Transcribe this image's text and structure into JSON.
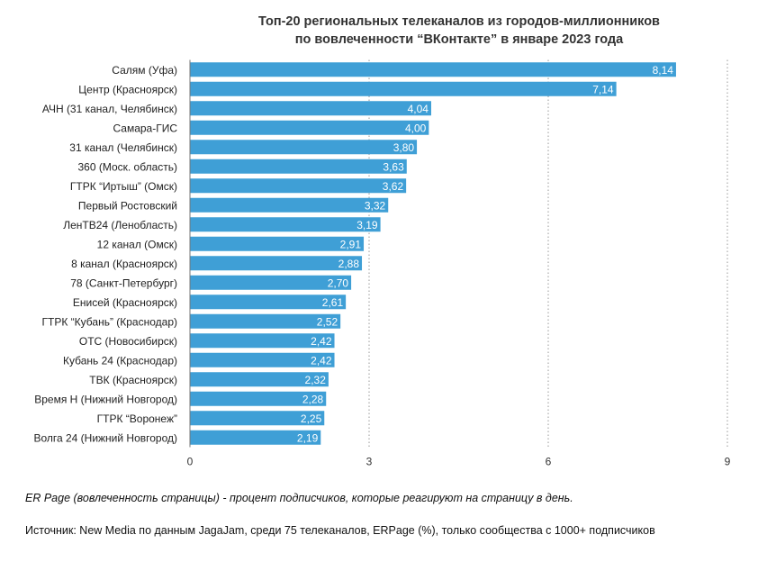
{
  "chart_data": {
    "type": "bar",
    "orientation": "horizontal",
    "title": "Топ-20 региональных телеканалов из городов-миллионников",
    "subtitle": "по вовлеченности “ВКонтакте” в январе 2023 года",
    "categories": [
      "Салям (Уфа)",
      "Центр (Красноярск)",
      "АЧН (31 канал, Челябинск)",
      "Самара-ГИС",
      "31 канал (Челябинск)",
      "360 (Моск. область)",
      "ГТРК “Иртыш” (Омск)",
      "Первый Ростовский",
      "ЛенТВ24 (Ленобласть)",
      "12 канал (Омск)",
      "8 канал (Красноярск)",
      "78 (Санкт-Петербург)",
      "Енисей (Красноярск)",
      "ГТРК “Кубань” (Краснодар)",
      "ОТС (Новосибирск)",
      "Кубань 24 (Краснодар)",
      "ТВК (Красноярск)",
      "Время Н (Нижний Новгород)",
      "ГТРК “Воронеж”",
      "Волга 24 (Нижний Новгород)"
    ],
    "values": [
      8.14,
      7.14,
      4.04,
      4.0,
      3.8,
      3.63,
      3.62,
      3.32,
      3.19,
      2.91,
      2.88,
      2.7,
      2.61,
      2.52,
      2.42,
      2.42,
      2.32,
      2.28,
      2.25,
      2.19
    ],
    "value_labels": [
      "8,14",
      "7,14",
      "4,04",
      "4,00",
      "3,80",
      "3,63",
      "3,62",
      "3,32",
      "3,19",
      "2,91",
      "2,88",
      "2,70",
      "2,61",
      "2,52",
      "2,42",
      "2,42",
      "2,32",
      "2,28",
      "2,25",
      "2,19"
    ],
    "xlim": [
      0,
      9
    ],
    "xticks": [
      0,
      3,
      6,
      9
    ],
    "grid": "vertical dashed",
    "bar_color": "#3f9fd6"
  },
  "footer": {
    "note": "ER Page (вовлеченность страницы) - процент подписчиков, которые реагируют на страницу в день.",
    "source": "Источник: New Media по данным JagaJam, среди 75 телеканалов, ERPage (%), только сообщества с 1000+ подписчиков"
  }
}
